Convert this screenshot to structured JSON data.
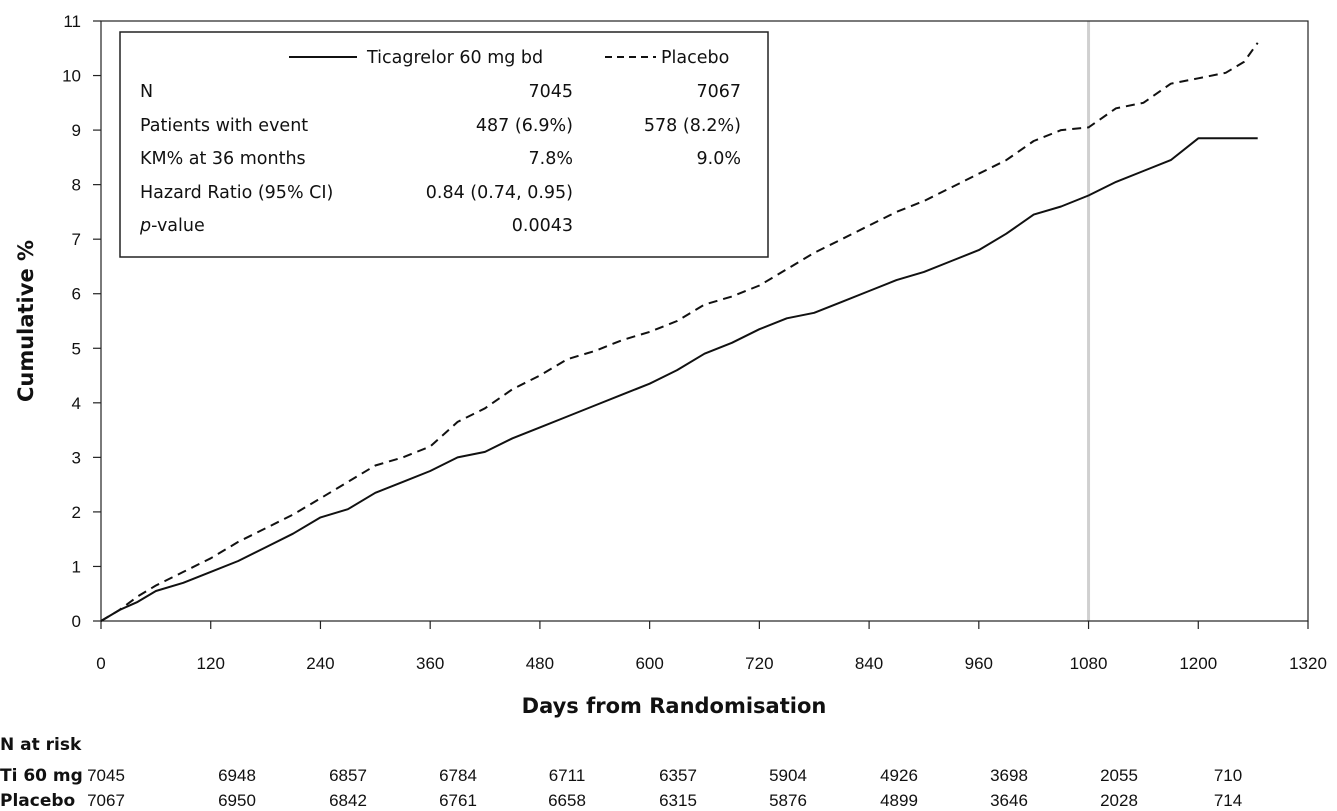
{
  "chart_data": {
    "type": "line",
    "xlabel": "Days from Randomisation",
    "ylabel": "Cumulative %",
    "xlim": [
      0,
      1320
    ],
    "ylim": [
      0,
      11
    ],
    "xticks": [
      0,
      120,
      240,
      360,
      480,
      600,
      720,
      840,
      960,
      1080,
      1200,
      1320
    ],
    "yticks": [
      0,
      1,
      2,
      3,
      4,
      5,
      6,
      7,
      8,
      9,
      10,
      11
    ],
    "reference_line_x": 1080,
    "series": [
      {
        "name": "Ticagrelor 60 mg bd",
        "style": "solid",
        "x": [
          0,
          20,
          40,
          60,
          90,
          120,
          150,
          180,
          210,
          240,
          270,
          300,
          330,
          360,
          390,
          420,
          450,
          480,
          510,
          540,
          570,
          600,
          630,
          660,
          690,
          720,
          750,
          780,
          810,
          840,
          870,
          900,
          930,
          960,
          990,
          1020,
          1050,
          1080,
          1110,
          1140,
          1170,
          1200,
          1230,
          1265
        ],
        "y": [
          0,
          0.2,
          0.35,
          0.55,
          0.7,
          0.9,
          1.1,
          1.35,
          1.6,
          1.9,
          2.05,
          2.35,
          2.55,
          2.75,
          3.0,
          3.1,
          3.35,
          3.55,
          3.75,
          3.95,
          4.15,
          4.35,
          4.6,
          4.9,
          5.1,
          5.35,
          5.55,
          5.65,
          5.85,
          6.05,
          6.25,
          6.4,
          6.6,
          6.8,
          7.1,
          7.45,
          7.6,
          7.8,
          8.05,
          8.25,
          8.45,
          8.85,
          8.85,
          8.85
        ]
      },
      {
        "name": "Placebo",
        "style": "dashed",
        "x": [
          0,
          20,
          40,
          60,
          90,
          120,
          150,
          180,
          210,
          240,
          270,
          300,
          330,
          360,
          390,
          420,
          450,
          480,
          510,
          540,
          570,
          600,
          630,
          660,
          690,
          720,
          750,
          780,
          810,
          840,
          870,
          900,
          930,
          960,
          990,
          1020,
          1050,
          1080,
          1110,
          1140,
          1170,
          1200,
          1230,
          1250,
          1265
        ],
        "y": [
          0,
          0.2,
          0.45,
          0.65,
          0.9,
          1.15,
          1.45,
          1.7,
          1.95,
          2.25,
          2.55,
          2.85,
          3.0,
          3.2,
          3.65,
          3.9,
          4.25,
          4.5,
          4.8,
          4.95,
          5.15,
          5.3,
          5.5,
          5.8,
          5.95,
          6.15,
          6.45,
          6.75,
          7.0,
          7.25,
          7.5,
          7.7,
          7.95,
          8.2,
          8.45,
          8.8,
          9.0,
          9.05,
          9.4,
          9.5,
          9.85,
          9.95,
          10.05,
          10.25,
          10.6
        ]
      }
    ],
    "legend": {
      "placement": "top-left",
      "rows": [
        {
          "label": "N",
          "ticagrelor": "7045",
          "placebo": "7067"
        },
        {
          "label": "Patients with event",
          "ticagrelor": "487 (6.9%)",
          "placebo": "578 (8.2%)"
        },
        {
          "label": "KM% at 36 months",
          "ticagrelor": "7.8%",
          "placebo": "9.0%"
        },
        {
          "label": "Hazard Ratio (95% CI)",
          "ticagrelor": "0.84 (0.74, 0.95)",
          "placebo": ""
        },
        {
          "label_italic": "p",
          "label": "-value",
          "ticagrelor": "0.0043",
          "placebo": ""
        }
      ]
    },
    "at_risk": {
      "title": "N at risk",
      "days": [
        0,
        120,
        240,
        360,
        480,
        600,
        720,
        840,
        960,
        1080,
        1200
      ],
      "rows": [
        {
          "label": "Ti 60 mg",
          "values": [
            "7045",
            "6948",
            "6857",
            "6784",
            "6711",
            "6357",
            "5904",
            "4926",
            "3698",
            "2055",
            "710"
          ]
        },
        {
          "label": "Placebo",
          "values": [
            "7067",
            "6950",
            "6842",
            "6761",
            "6658",
            "6315",
            "5876",
            "4899",
            "3646",
            "2028",
            "714"
          ]
        }
      ]
    },
    "colors": {
      "line": "#111111",
      "reference_line": "#d0d0d0",
      "frame": "#222222"
    }
  }
}
